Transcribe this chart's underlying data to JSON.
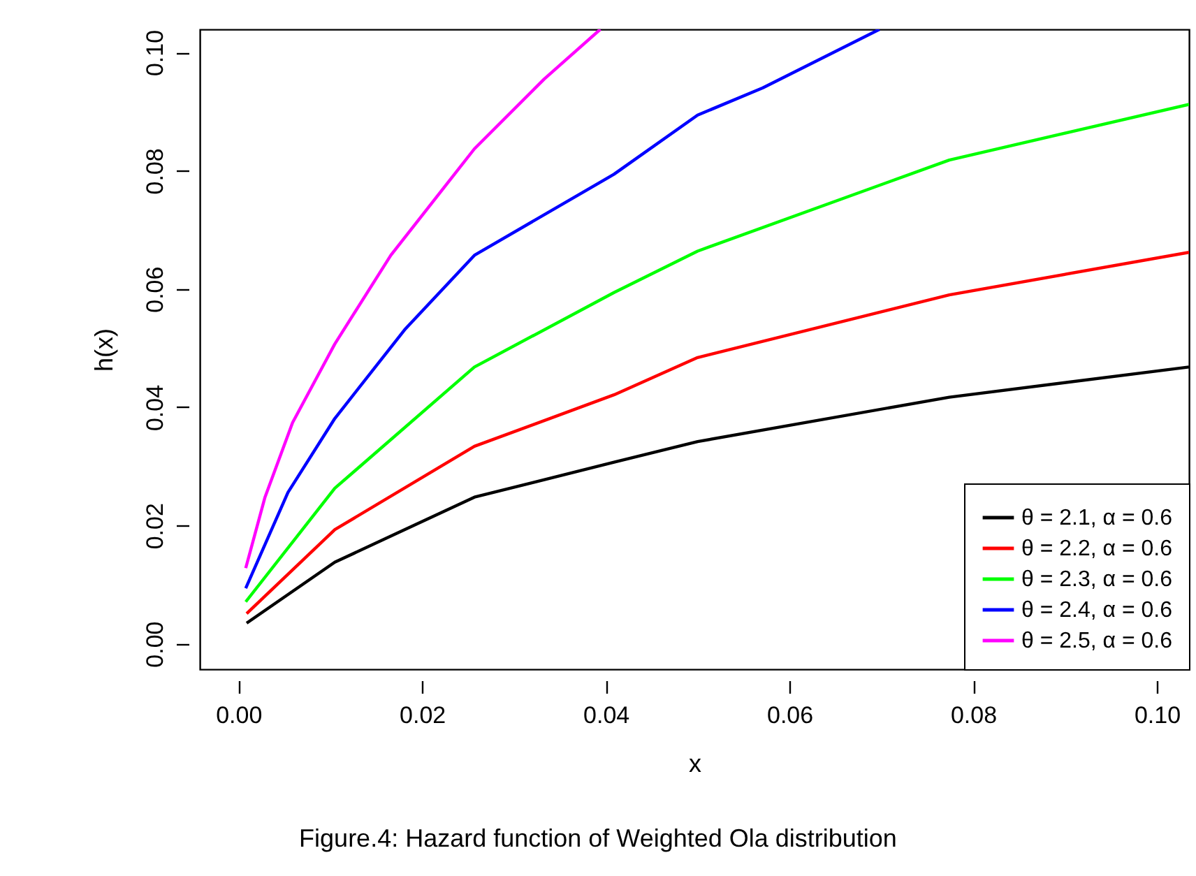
{
  "chart_data": {
    "type": "line",
    "xlabel": "x",
    "ylabel": "h(x)",
    "annotations": [
      "Figure.4: Hazard function of Weighted Ola distribution"
    ],
    "xlim": [
      -0.0042,
      0.1035
    ],
    "ylim": [
      -0.0043,
      0.1039
    ],
    "xticks": [
      {
        "value": 0,
        "label": "0.00"
      },
      0.02,
      0.04,
      0.06,
      0.08,
      {
        "value": 0.1,
        "label": "0.10"
      }
    ],
    "yticks": [
      {
        "value": 0,
        "label": "0.00"
      },
      0.02,
      0.04,
      0.06,
      0.08,
      {
        "value": 0.1,
        "label": "0.10"
      }
    ],
    "grid": false,
    "legend": "bottom right",
    "marker": "none",
    "line_style": "solid",
    "series": [
      {
        "name": "θ = 2.1, α = 0.6",
        "color": "#000000",
        "x": [
          0.0009,
          0.0105,
          0.0257,
          0.0409,
          0.05,
          0.0774,
          0.1035
        ],
        "values": [
          0.0035,
          0.0138,
          0.0248,
          0.0307,
          0.0342,
          0.0417,
          0.0468
        ]
      },
      {
        "name": "θ = 2.2, α = 0.6",
        "color": "#ff0000",
        "x": [
          0.0009,
          0.0105,
          0.0257,
          0.0409,
          0.05,
          0.0774,
          0.1035
        ],
        "values": [
          0.0051,
          0.0193,
          0.0334,
          0.0421,
          0.0484,
          0.059,
          0.0662
        ]
      },
      {
        "name": "θ = 2.3, α = 0.6",
        "color": "#00ff00",
        "x": [
          0.0008,
          0.0105,
          0.0257,
          0.0409,
          0.05,
          0.0774,
          0.1035
        ],
        "values": [
          0.0071,
          0.0263,
          0.0468,
          0.0594,
          0.0664,
          0.0818,
          0.0912
        ]
      },
      {
        "name": "θ = 2.4, α = 0.6",
        "color": "#0000ff",
        "x": [
          0.0008,
          0.0054,
          0.0105,
          0.0181,
          0.0257,
          0.0409,
          0.05,
          0.0571,
          0.0698
        ],
        "values": [
          0.0094,
          0.0256,
          0.0381,
          0.0531,
          0.0657,
          0.0794,
          0.0894,
          0.094,
          0.1039
        ]
      },
      {
        "name": "θ = 2.5, α = 0.6",
        "color": "#ff00ff",
        "x": [
          0.0008,
          0.0029,
          0.0059,
          0.0105,
          0.0166,
          0.0257,
          0.0333,
          0.0394
        ],
        "values": [
          0.0128,
          0.0248,
          0.0374,
          0.0507,
          0.0657,
          0.0837,
          0.0955,
          0.1039
        ]
      }
    ]
  }
}
